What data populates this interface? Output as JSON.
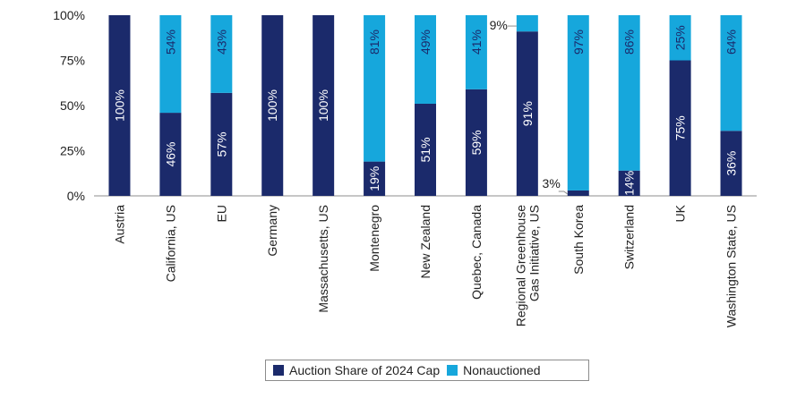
{
  "chart_data": {
    "type": "bar",
    "stacked": true,
    "categories": [
      [
        "Austria"
      ],
      [
        "California, US"
      ],
      [
        "EU"
      ],
      [
        "Germany"
      ],
      [
        "Massachusetts, US"
      ],
      [
        "Montenegro"
      ],
      [
        "New Zealand"
      ],
      [
        "Quebec, Canada"
      ],
      [
        "Regional Greenhouse",
        "Gas Initiative, US"
      ],
      [
        "South Korea"
      ],
      [
        "Switzerland"
      ],
      [
        "UK"
      ],
      [
        "Washington State, US"
      ]
    ],
    "series": [
      {
        "name": "Auction Share of 2024 Cap",
        "color": "#1b2a6b",
        "values": [
          100,
          46,
          57,
          100,
          100,
          19,
          51,
          59,
          91,
          3,
          14,
          75,
          36
        ],
        "labels": [
          "100%",
          "46%",
          "57%",
          "100%",
          "100%",
          "19%",
          "51%",
          "59%",
          "91%",
          "3%",
          "14%",
          "75%",
          "36%"
        ]
      },
      {
        "name": "Nonauctioned",
        "color": "#16a7dc",
        "values": [
          0,
          54,
          43,
          0,
          0,
          81,
          49,
          41,
          9,
          97,
          86,
          25,
          64
        ],
        "labels": [
          "",
          "54%",
          "43%",
          "",
          "",
          "81%",
          "49%",
          "41%",
          "9%",
          "97%",
          "86%",
          "25%",
          "64%"
        ]
      }
    ],
    "ylim": [
      0,
      100
    ],
    "yticks": [
      "0%",
      "25%",
      "50%",
      "75%",
      "100%"
    ],
    "ytick_values": [
      0,
      25,
      50,
      75,
      100
    ],
    "legend_position": "bottom",
    "grid": false
  }
}
